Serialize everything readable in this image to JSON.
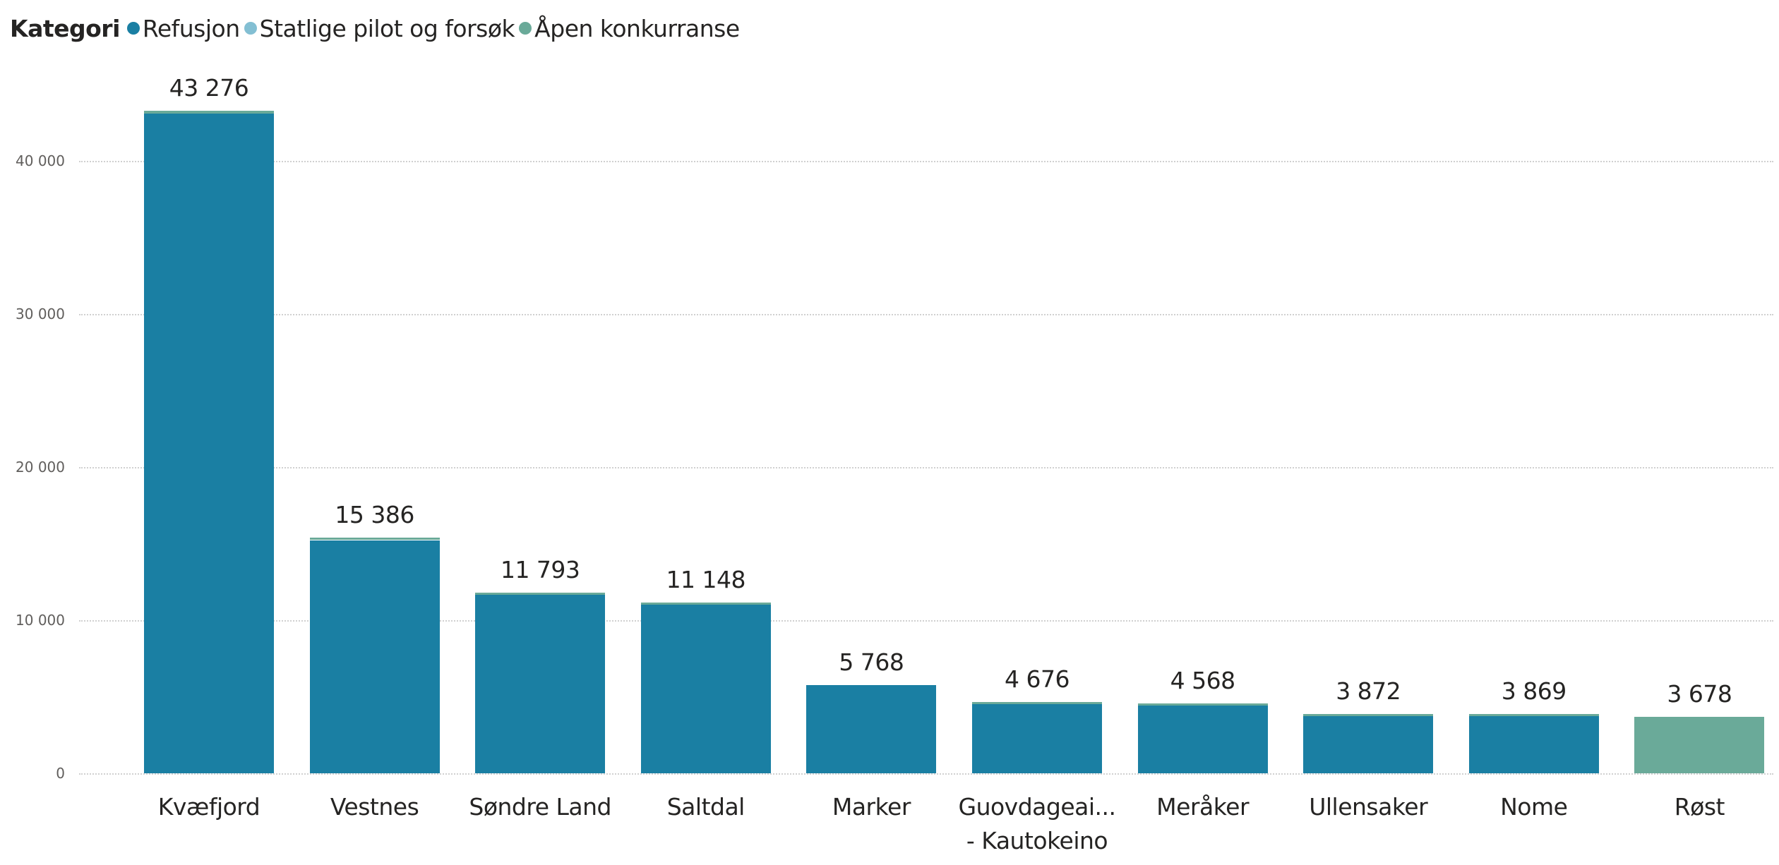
{
  "legend": {
    "title": "Kategori",
    "items": [
      {
        "label": "Refusjon",
        "color": "#1a7fa3"
      },
      {
        "label": "Statlige pilot og forsøk",
        "color": "#83bfd3"
      },
      {
        "label": "Åpen konkurranse",
        "color": "#6aaa99"
      }
    ]
  },
  "axis": {
    "y_ticks": [
      {
        "value": 0,
        "label": "0"
      },
      {
        "value": 10000,
        "label": "10 000"
      },
      {
        "value": 20000,
        "label": "20 000"
      },
      {
        "value": 30000,
        "label": "30 000"
      },
      {
        "value": 40000,
        "label": "40 000"
      }
    ]
  },
  "bars": [
    {
      "category": "Kvæfjord",
      "category_line2": "",
      "total_label": "43 276"
    },
    {
      "category": "Vestnes",
      "category_line2": "",
      "total_label": "15 386"
    },
    {
      "category": "Søndre Land",
      "category_line2": "",
      "total_label": "11 793"
    },
    {
      "category": "Saltdal",
      "category_line2": "",
      "total_label": "11 148"
    },
    {
      "category": "Marker",
      "category_line2": "",
      "total_label": "5 768"
    },
    {
      "category": "Guovdageai...",
      "category_line2": "- Kautokeino",
      "total_label": "4 676"
    },
    {
      "category": "Meråker",
      "category_line2": "",
      "total_label": "4 568"
    },
    {
      "category": "Ullensaker",
      "category_line2": "",
      "total_label": "3 872"
    },
    {
      "category": "Nome",
      "category_line2": "",
      "total_label": "3 869"
    },
    {
      "category": "Røst",
      "category_line2": "",
      "total_label": "3 678"
    }
  ],
  "chart_data": {
    "type": "bar",
    "stacked": true,
    "title": "",
    "legend_title": "Kategori",
    "legend_position": "top-left",
    "xlabel": "",
    "ylabel": "",
    "ylim": [
      0,
      45000
    ],
    "grid": true,
    "categories": [
      "Kvæfjord",
      "Vestnes",
      "Søndre Land",
      "Saltdal",
      "Marker",
      "Guovdageaidnu - Kautokeino",
      "Meråker",
      "Ullensaker",
      "Nome",
      "Røst"
    ],
    "totals": [
      43276,
      15386,
      11793,
      11148,
      5768,
      4676,
      4568,
      3872,
      3869,
      3678
    ],
    "series": [
      {
        "name": "Refusjon",
        "color": "#1a7fa3",
        "values": [
          43100,
          15230,
          11700,
          11060,
          5768,
          4590,
          4480,
          3790,
          3840,
          0
        ]
      },
      {
        "name": "Statlige pilot og forsøk",
        "color": "#83bfd3",
        "values": [
          0,
          0,
          0,
          0,
          0,
          0,
          0,
          0,
          0,
          0
        ]
      },
      {
        "name": "Åpen konkurranse",
        "color": "#6aaa99",
        "values": [
          176,
          156,
          93,
          88,
          0,
          86,
          88,
          82,
          29,
          3678
        ]
      }
    ]
  }
}
